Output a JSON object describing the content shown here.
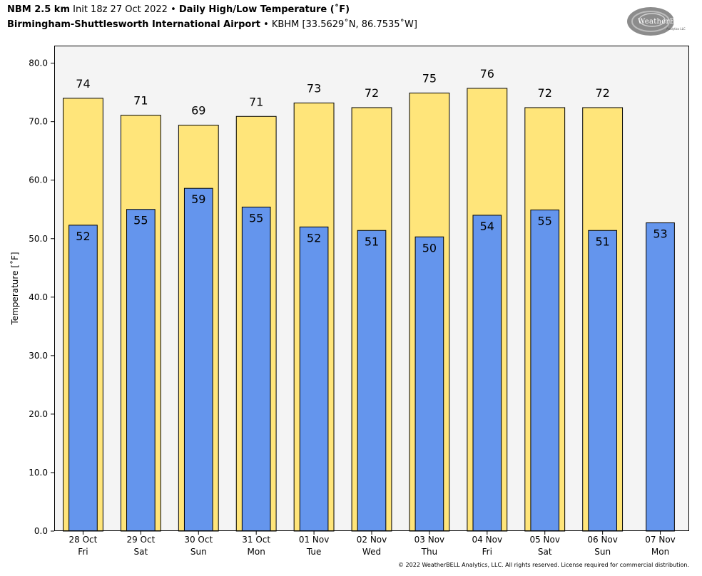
{
  "header": {
    "model": "NBM 2.5 km",
    "init": "Init 18z 27 Oct 2022",
    "bullet": "•",
    "product": "Daily High/Low Temperature (˚F)",
    "station_name": "Birmingham-Shuttlesworth International Airport",
    "station_info": "KBHM [33.5629˚N, 86.7535˚W]"
  },
  "logo": {
    "text": "WeatherBELL",
    "subtext": "Analytics LLC"
  },
  "copyright": "© 2022 WeatherBELL Analytics, LLC. All rights reserved. License required for commercial distribution.",
  "colors": {
    "high": "#ffe57a",
    "low": "#6495ed",
    "plot_bg": "#f4f4f4"
  },
  "chart_data": {
    "type": "bar",
    "ylabel": "Temperature [˚F]",
    "ylim": [
      0,
      83
    ],
    "yticks": [
      "0.0",
      "10.0",
      "20.0",
      "30.0",
      "40.0",
      "50.0",
      "60.0",
      "70.0",
      "80.0"
    ],
    "categories": [
      [
        "28 Oct",
        "Fri"
      ],
      [
        "29 Oct",
        "Sat"
      ],
      [
        "30 Oct",
        "Sun"
      ],
      [
        "31 Oct",
        "Mon"
      ],
      [
        "01 Nov",
        "Tue"
      ],
      [
        "02 Nov",
        "Wed"
      ],
      [
        "03 Nov",
        "Thu"
      ],
      [
        "04 Nov",
        "Fri"
      ],
      [
        "05 Nov",
        "Sat"
      ],
      [
        "06 Nov",
        "Sun"
      ],
      [
        "07 Nov",
        "Mon"
      ]
    ],
    "series": [
      {
        "name": "High",
        "values": [
          74.0,
          71.1,
          69.4,
          70.9,
          73.2,
          72.4,
          74.9,
          75.7,
          72.4,
          72.4,
          null
        ],
        "labels": [
          "74",
          "71",
          "69",
          "71",
          "73",
          "72",
          "75",
          "76",
          "72",
          "72",
          null
        ]
      },
      {
        "name": "Low",
        "values": [
          52.3,
          55.0,
          58.6,
          55.4,
          52.0,
          51.4,
          50.3,
          54.0,
          54.9,
          51.4,
          52.7
        ],
        "labels": [
          "52",
          "55",
          "59",
          "55",
          "52",
          "51",
          "50",
          "54",
          "55",
          "51",
          "53"
        ]
      }
    ],
    "grid": false,
    "legend": "none"
  }
}
